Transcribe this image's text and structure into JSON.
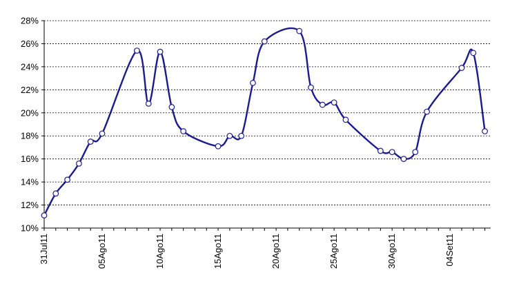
{
  "chart_data": {
    "type": "line",
    "title": "",
    "xlabel": "",
    "ylabel": "",
    "ylim": [
      0.1,
      0.28
    ],
    "yticks": [
      0.1,
      0.12,
      0.14,
      0.16,
      0.18,
      0.2,
      0.22,
      0.24,
      0.26,
      0.28
    ],
    "ytick_labels": [
      "10%",
      "12%",
      "14%",
      "16%",
      "18%",
      "20%",
      "22%",
      "24%",
      "26%",
      "28%"
    ],
    "xlim": [
      0,
      38.5
    ],
    "xticks": [
      0,
      5,
      10,
      15,
      20,
      25,
      30,
      35
    ],
    "xtick_labels": [
      "31Jul11",
      "05Ago11",
      "10Ago11",
      "15Ago11",
      "20Ago11",
      "25Ago11",
      "30Ago11",
      "04Set11"
    ],
    "grid": true,
    "legend": "none",
    "smooth": true,
    "series": [
      {
        "name": "series-1",
        "color": "#1a1a8c",
        "x": [
          0,
          1,
          2,
          3,
          4,
          5,
          8,
          9,
          10,
          11,
          12,
          15,
          16,
          17,
          18,
          19,
          22,
          23,
          24,
          25,
          26,
          29,
          30,
          31,
          32,
          33,
          36,
          37,
          38
        ],
        "y": [
          0.111,
          0.13,
          0.142,
          0.156,
          0.175,
          0.182,
          0.254,
          0.208,
          0.253,
          0.205,
          0.184,
          0.171,
          0.18,
          0.18,
          0.226,
          0.262,
          0.271,
          0.222,
          0.207,
          0.209,
          0.194,
          0.167,
          0.166,
          0.16,
          0.166,
          0.201,
          0.239,
          0.252,
          0.184
        ]
      }
    ]
  }
}
